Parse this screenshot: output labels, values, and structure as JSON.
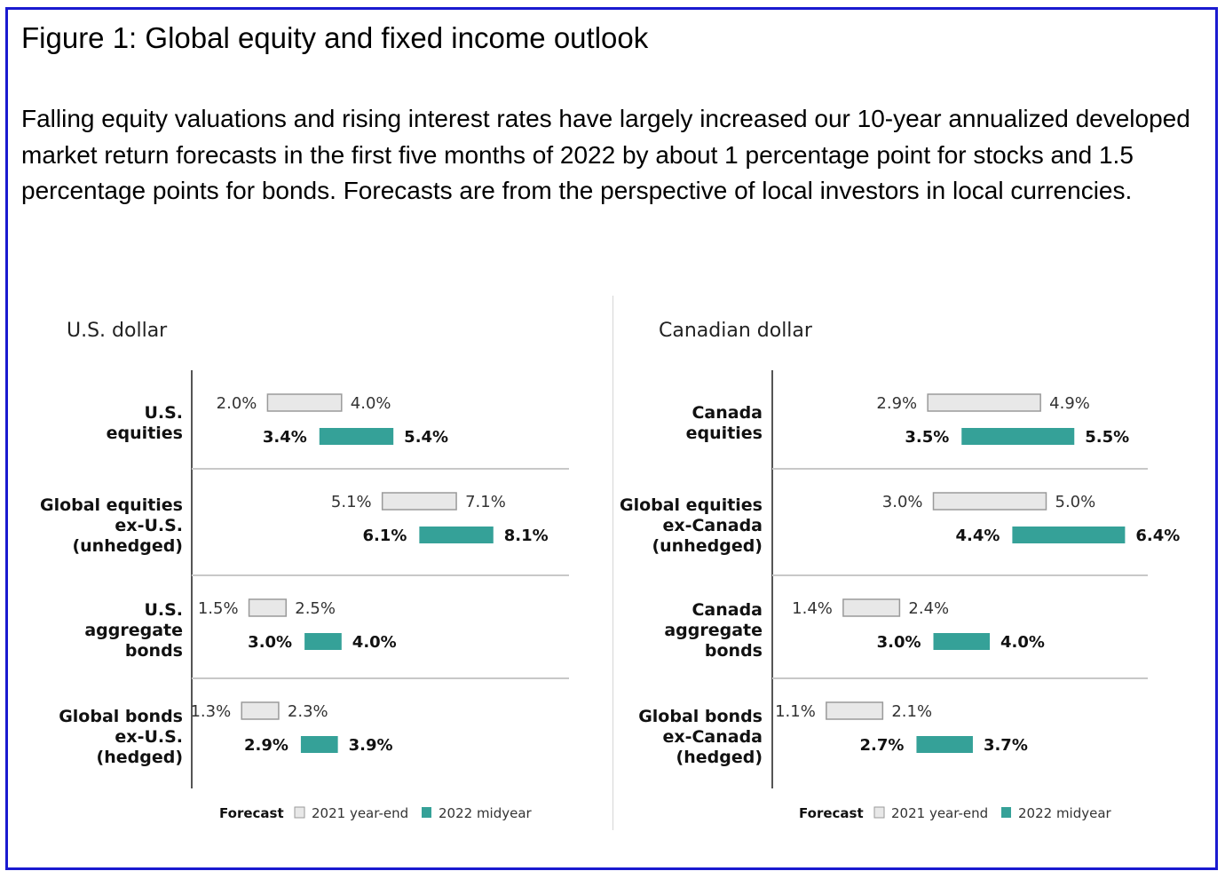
{
  "figure": {
    "title": "Figure 1: Global equity and fixed income outlook",
    "description": "Falling equity valuations and rising interest rates have largely increased our 10-year annualized developed market return forecasts in the first five months of 2022 by about 1 percentage point for stocks and 1.5 percentage points for bonds. Forecasts are from the perspective of local investors in local currencies."
  },
  "colors": {
    "year_end_fill": "#e8e8e8",
    "year_end_stroke": "#9a9a9a",
    "midyear_fill": "#35a198",
    "axis": "#555555",
    "separator": "#c8c8c8",
    "frame": "#1a1ad0"
  },
  "chart_data": [
    {
      "type": "bar",
      "subtype": "floating-range",
      "title": "U.S. dollar",
      "unit": "%",
      "categories": [
        [
          "U.S.",
          "equities"
        ],
        [
          "Global equities",
          "ex-U.S.",
          "(unhedged)"
        ],
        [
          "U.S.",
          "aggregate",
          "bonds"
        ],
        [
          "Global bonds",
          "ex-U.S.",
          "(hedged)"
        ]
      ],
      "series": [
        {
          "name": "2021 year-end",
          "ranges": [
            [
              2.0,
              4.0
            ],
            [
              5.1,
              7.1
            ],
            [
              1.5,
              2.5
            ],
            [
              1.3,
              2.3
            ]
          ],
          "labels": [
            [
              "2.0%",
              "4.0%"
            ],
            [
              "5.1%",
              "7.1%"
            ],
            [
              "1.5%",
              "2.5%"
            ],
            [
              "1.3%",
              "2.3%"
            ]
          ]
        },
        {
          "name": "2022 midyear",
          "ranges": [
            [
              3.4,
              5.4
            ],
            [
              6.1,
              8.1
            ],
            [
              3.0,
              4.0
            ],
            [
              2.9,
              3.9
            ]
          ],
          "labels": [
            [
              "3.4%",
              "5.4%"
            ],
            [
              "6.1%",
              "8.1%"
            ],
            [
              "3.0%",
              "4.0%"
            ],
            [
              "2.9%",
              "3.9%"
            ]
          ]
        }
      ],
      "legend": {
        "title": "Forecast",
        "items": [
          "2021 year-end",
          "2022 midyear"
        ],
        "placement": "bottom"
      },
      "grid": false
    },
    {
      "type": "bar",
      "subtype": "floating-range",
      "title": "Canadian dollar",
      "unit": "%",
      "categories": [
        [
          "Canada",
          "equities"
        ],
        [
          "Global equities",
          "ex-Canada",
          "(unhedged)"
        ],
        [
          "Canada",
          "aggregate",
          "bonds"
        ],
        [
          "Global bonds",
          "ex-Canada",
          "(hedged)"
        ]
      ],
      "series": [
        {
          "name": "2021 year-end",
          "ranges": [
            [
              2.9,
              4.9
            ],
            [
              3.0,
              5.0
            ],
            [
              1.4,
              2.4
            ],
            [
              1.1,
              2.1
            ]
          ],
          "labels": [
            [
              "2.9%",
              "4.9%"
            ],
            [
              "3.0%",
              "5.0%"
            ],
            [
              "1.4%",
              "2.4%"
            ],
            [
              "1.1%",
              "2.1%"
            ]
          ]
        },
        {
          "name": "2022 midyear",
          "ranges": [
            [
              3.5,
              5.5
            ],
            [
              4.4,
              6.4
            ],
            [
              3.0,
              4.0
            ],
            [
              2.7,
              3.7
            ]
          ],
          "labels": [
            [
              "3.5%",
              "5.5%"
            ],
            [
              "4.4%",
              "6.4%"
            ],
            [
              "3.0%",
              "4.0%"
            ],
            [
              "2.7%",
              "3.7%"
            ]
          ]
        }
      ],
      "legend": {
        "title": "Forecast",
        "items": [
          "2021 year-end",
          "2022 midyear"
        ],
        "placement": "bottom"
      },
      "grid": false
    }
  ]
}
